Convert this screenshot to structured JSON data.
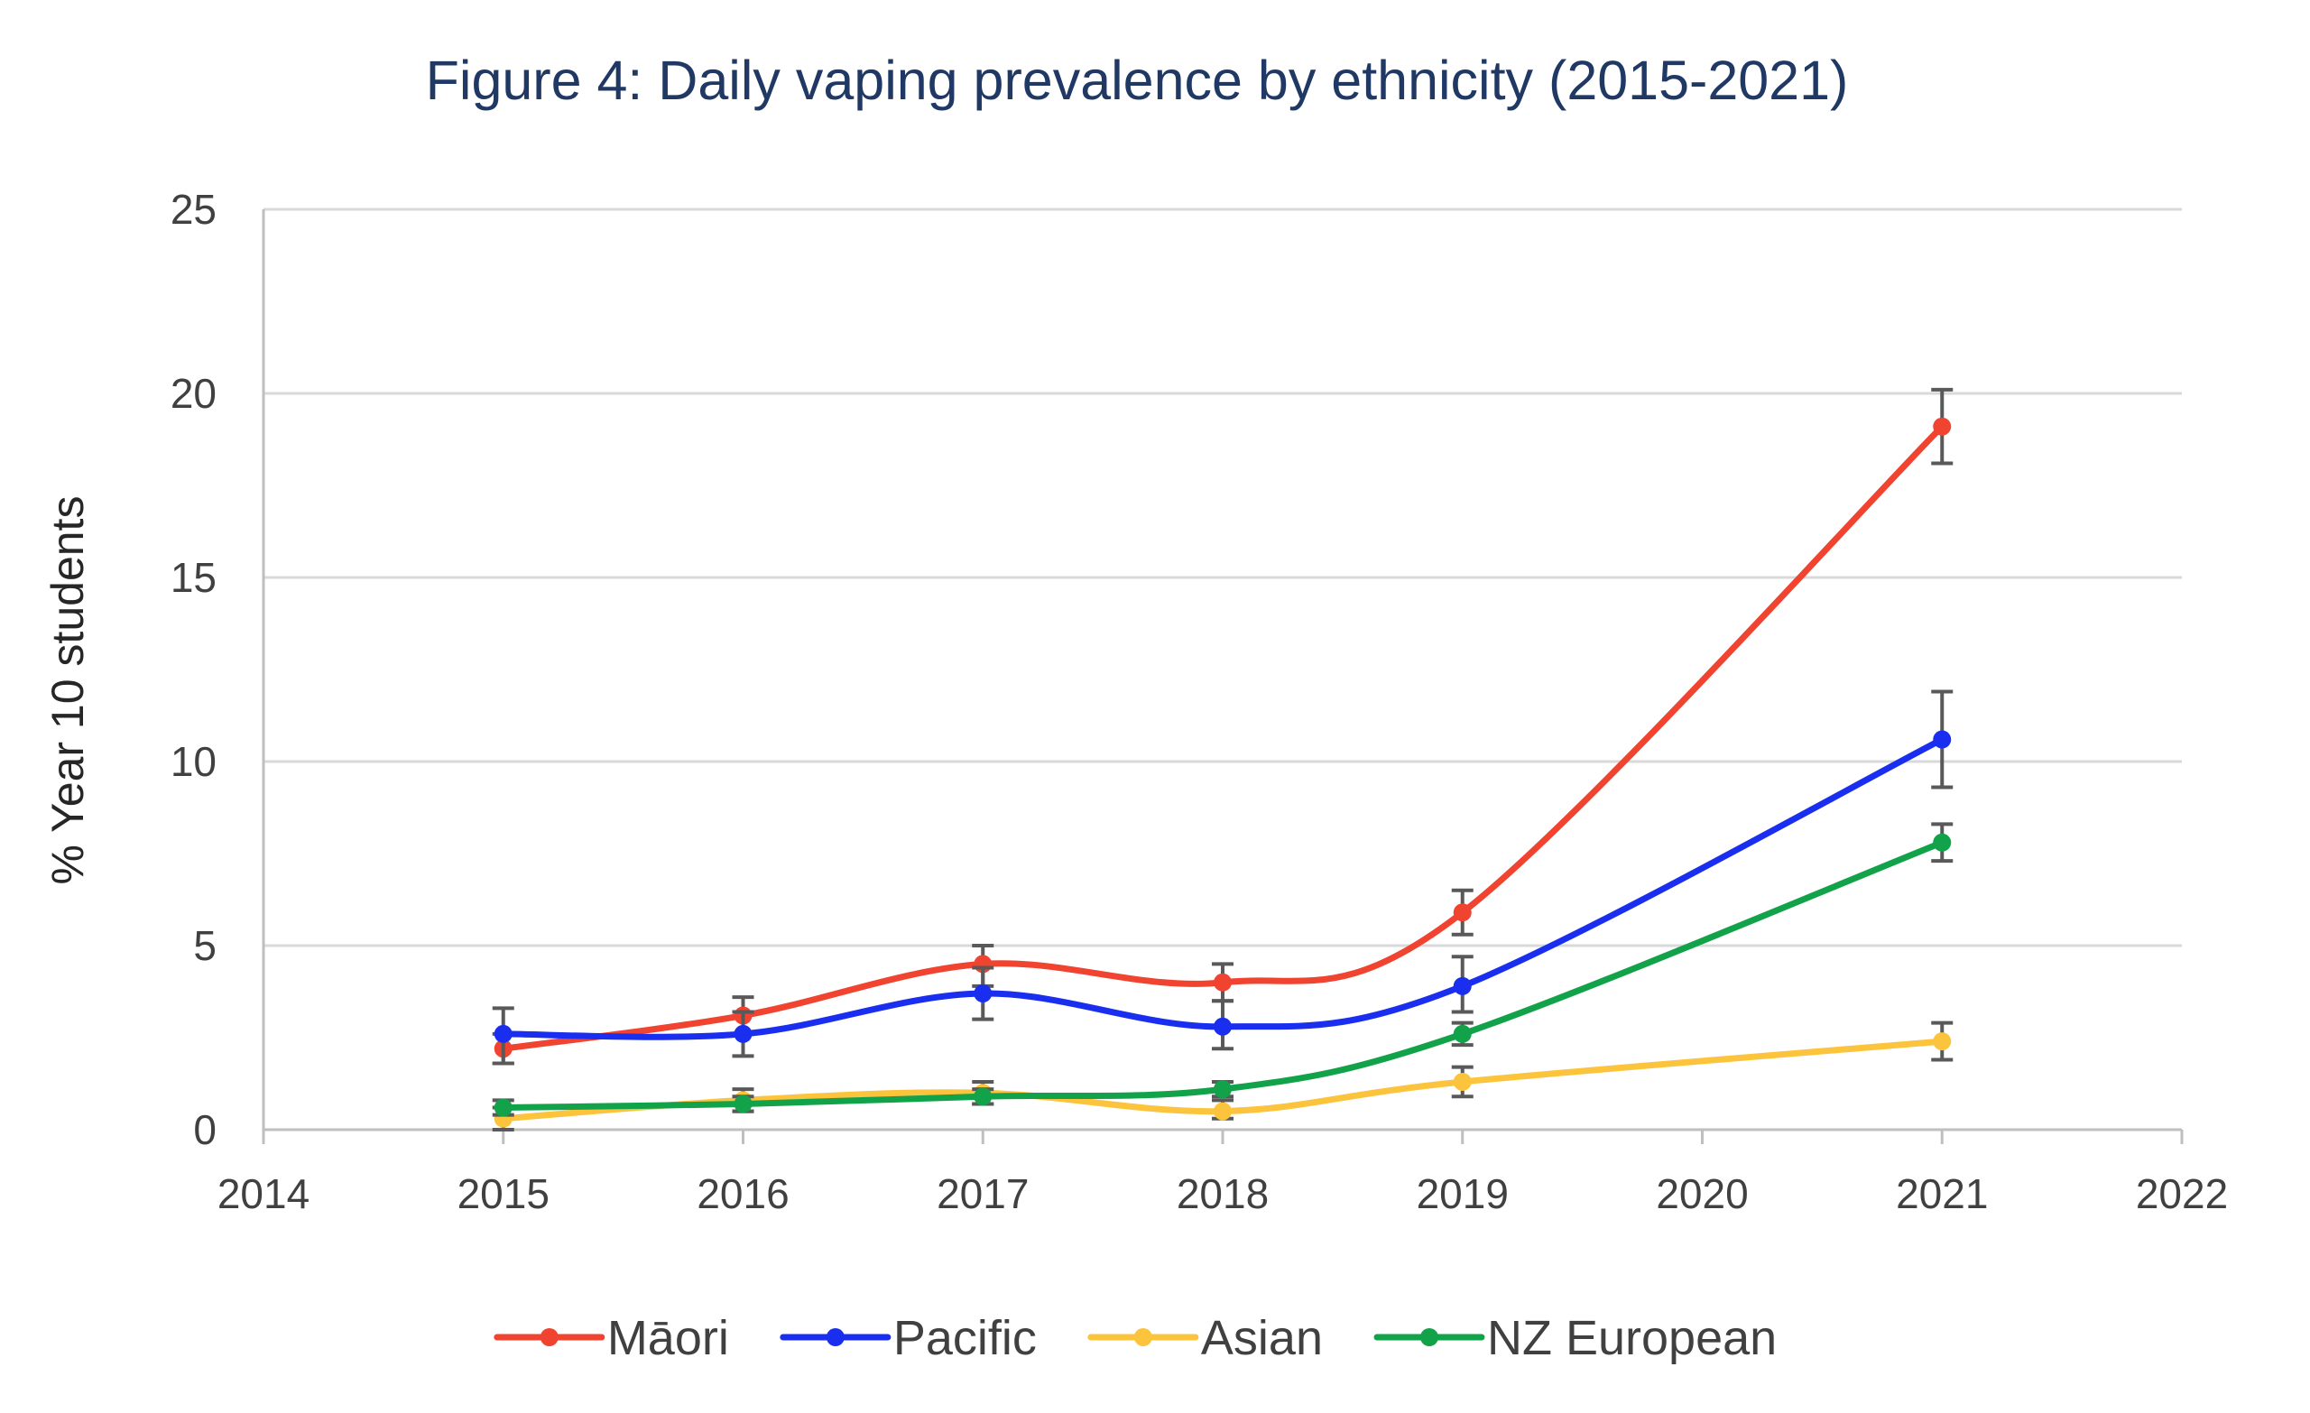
{
  "chart_data": {
    "type": "line",
    "title": "Figure 4: Daily vaping prevalence by ethnicity (2015-2021)",
    "xlabel": "",
    "ylabel": "% Year 10 students",
    "xlim": [
      2014,
      2022
    ],
    "ylim": [
      0,
      25
    ],
    "x_ticks": [
      "2014",
      "2015",
      "2016",
      "2017",
      "2018",
      "2019",
      "2020",
      "2021",
      "2022"
    ],
    "y_ticks": [
      "0",
      "5",
      "10",
      "15",
      "20",
      "25"
    ],
    "grid": true,
    "smooth_lines": true,
    "legend_position": "bottom",
    "series": [
      {
        "name": "Māori",
        "color": "#f04330",
        "x": [
          2015,
          2016,
          2017,
          2018,
          2019,
          2021
        ],
        "values": [
          2.2,
          3.1,
          4.5,
          4.0,
          5.9,
          19.1
        ],
        "error_low": [
          1.8,
          2.6,
          3.9,
          3.5,
          5.3,
          18.1
        ],
        "error_high": [
          2.6,
          3.6,
          5.0,
          4.5,
          6.5,
          20.1
        ]
      },
      {
        "name": "Pacific",
        "color": "#1a2ef0",
        "x": [
          2015,
          2016,
          2017,
          2018,
          2019,
          2021
        ],
        "values": [
          2.6,
          2.6,
          3.7,
          2.8,
          3.9,
          10.6
        ],
        "error_low": [
          1.8,
          2.0,
          3.0,
          2.2,
          3.2,
          9.3
        ],
        "error_high": [
          3.3,
          3.2,
          4.4,
          3.5,
          4.7,
          11.9
        ]
      },
      {
        "name": "Asian",
        "color": "#fbc43c",
        "x": [
          2015,
          2016,
          2017,
          2018,
          2019,
          2021
        ],
        "values": [
          0.3,
          0.8,
          1.0,
          0.5,
          1.3,
          2.4
        ],
        "error_low": [
          0.0,
          0.5,
          0.7,
          0.3,
          0.9,
          1.9
        ],
        "error_high": [
          0.6,
          1.1,
          1.3,
          0.8,
          1.7,
          2.9
        ]
      },
      {
        "name": "NZ European",
        "color": "#12a34a",
        "x": [
          2015,
          2016,
          2017,
          2018,
          2019,
          2021
        ],
        "values": [
          0.6,
          0.7,
          0.9,
          1.1,
          2.6,
          7.8
        ],
        "error_low": [
          0.4,
          0.5,
          0.7,
          0.9,
          2.3,
          7.3
        ],
        "error_high": [
          0.8,
          0.9,
          1.1,
          1.3,
          2.9,
          8.3
        ]
      }
    ]
  }
}
